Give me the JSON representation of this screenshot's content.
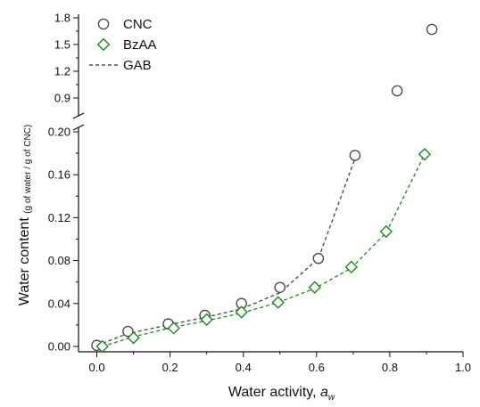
{
  "chart_data": {
    "type": "scatter",
    "xlabel_main": "Water activity, ",
    "xlabel_italic": "a",
    "xlabel_sub": "w",
    "ylabel_main": "Water content ",
    "ylabel_unit": "(g of water / g of CNC)",
    "xlim": [
      -0.05,
      1.0
    ],
    "ylim_lower": [
      -0.005,
      0.2
    ],
    "ylim_upper": [
      0.75,
      1.8
    ],
    "axis_break_between": [
      0.2,
      0.75
    ],
    "x_ticks": [
      0.0,
      0.2,
      0.4,
      0.6,
      0.8,
      1.0
    ],
    "x_tick_labels": [
      "0.0",
      "0.2",
      "0.4",
      "0.6",
      "0.8",
      "1.0"
    ],
    "y_ticks_lower": [
      0.0,
      0.04,
      0.08,
      0.12,
      0.16,
      0.2
    ],
    "y_tick_labels_lower": [
      "0.00",
      "0.04",
      "0.08",
      "0.12",
      "0.16",
      "0.20"
    ],
    "y_ticks_upper": [
      0.9,
      1.2,
      1.5,
      1.8
    ],
    "y_tick_labels_upper": [
      "0.9",
      "1.2",
      "1.5",
      "1.8"
    ],
    "legend_position": "top-left",
    "grid": false,
    "series": [
      {
        "name": "CNC",
        "marker": "circle",
        "color": "#444444",
        "x": [
          0.0,
          0.085,
          0.195,
          0.295,
          0.395,
          0.5,
          0.605,
          0.705,
          0.82,
          0.915
        ],
        "y": [
          0.001,
          0.014,
          0.021,
          0.029,
          0.04,
          0.055,
          0.082,
          0.178,
          0.98,
          1.67
        ]
      },
      {
        "name": "BzAA",
        "marker": "diamond",
        "color": "#1a8a1a",
        "x": [
          0.015,
          0.1,
          0.21,
          0.3,
          0.395,
          0.495,
          0.595,
          0.695,
          0.79,
          0.895
        ],
        "y": [
          0.0,
          0.008,
          0.017,
          0.025,
          0.032,
          0.041,
          0.055,
          0.074,
          0.107,
          0.179
        ]
      },
      {
        "name": "GAB",
        "marker": "dashed-line",
        "color": "#333333"
      }
    ],
    "fit_lines": [
      {
        "fits": "CNC",
        "color": "#444444",
        "x": [
          0.0,
          0.085,
          0.195,
          0.295,
          0.395,
          0.5,
          0.605,
          0.705
        ],
        "y": [
          0.001,
          0.012,
          0.02,
          0.027,
          0.035,
          0.05,
          0.082,
          0.175
        ]
      },
      {
        "fits": "BzAA",
        "color": "#1a8a1a",
        "x": [
          0.015,
          0.1,
          0.21,
          0.3,
          0.395,
          0.495,
          0.595,
          0.695,
          0.79,
          0.895
        ],
        "y": [
          0.0,
          0.009,
          0.018,
          0.024,
          0.031,
          0.041,
          0.054,
          0.073,
          0.106,
          0.179
        ]
      }
    ]
  }
}
